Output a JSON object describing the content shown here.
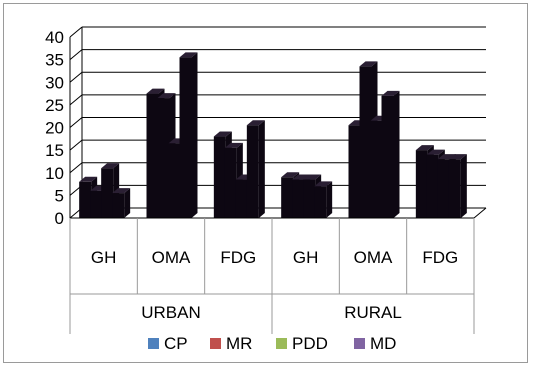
{
  "chart_data": {
    "type": "bar",
    "style": "3d-clustered-column",
    "groups": [
      {
        "label": "URBAN",
        "categories": [
          "GH",
          "OMA",
          "FDG"
        ]
      },
      {
        "label": "RURAL",
        "categories": [
          "GH",
          "OMA",
          "FDG"
        ]
      }
    ],
    "categories": [
      "GH",
      "OMA",
      "FDG",
      "GH",
      "OMA",
      "FDG"
    ],
    "series": [
      {
        "name": "CP",
        "color": "#4f81bd",
        "values": [
          8,
          27.5,
          18,
          9,
          20.5,
          15
        ]
      },
      {
        "name": "MR",
        "color": "#c0504d",
        "values": [
          6,
          26.5,
          15.5,
          8.5,
          33.5,
          14
        ]
      },
      {
        "name": "PDD",
        "color": "#9bbb59",
        "values": [
          11,
          16.5,
          8.5,
          8.5,
          21.5,
          13
        ]
      },
      {
        "name": "MD",
        "color": "#8064a2",
        "values": [
          5.5,
          35.5,
          20.5,
          7,
          27,
          13
        ]
      }
    ],
    "bar_render_color": "#0d0712",
    "ylim": [
      0,
      40
    ],
    "yticks": [
      0,
      5,
      10,
      15,
      20,
      25,
      30,
      35,
      40
    ],
    "grid": true,
    "legend_position": "bottom"
  }
}
